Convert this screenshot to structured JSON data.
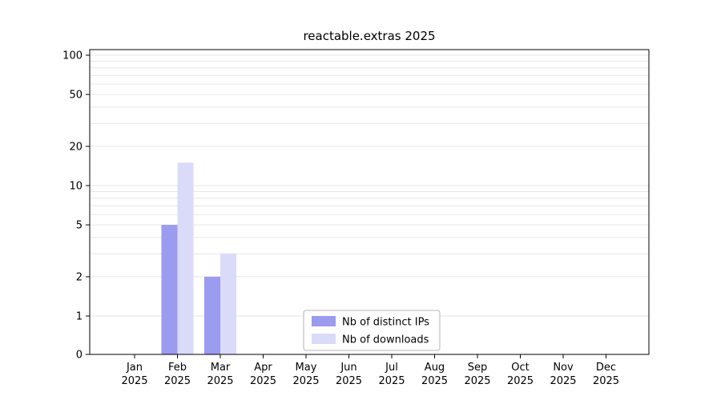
{
  "chart_data": {
    "type": "bar",
    "title": "reactable.extras 2025",
    "categories": [
      "Jan",
      "Feb",
      "Mar",
      "Apr",
      "May",
      "Jun",
      "Jul",
      "Aug",
      "Sep",
      "Oct",
      "Nov",
      "Dec"
    ],
    "category_year": "2025",
    "series": [
      {
        "name": "Nb of distinct IPs",
        "color": "#9b9bef",
        "values": [
          0,
          5,
          2,
          0,
          0,
          0,
          0,
          0,
          0,
          0,
          0,
          0
        ]
      },
      {
        "name": "Nb of downloads",
        "color": "#dadaf9",
        "values": [
          0,
          15,
          3,
          0,
          0,
          0,
          0,
          0,
          0,
          0,
          0,
          0
        ]
      }
    ],
    "y_ticks": [
      0,
      1,
      2,
      5,
      10,
      20,
      50,
      100
    ],
    "scale": "symlog",
    "ylim": [
      0,
      110
    ],
    "grid": true,
    "grid_color": "#e6e6e6",
    "axis_color": "#000000",
    "legend_position": "bottom-center",
    "legend_border_color": "#b5b5b5",
    "legend_background": "#ffffff"
  }
}
